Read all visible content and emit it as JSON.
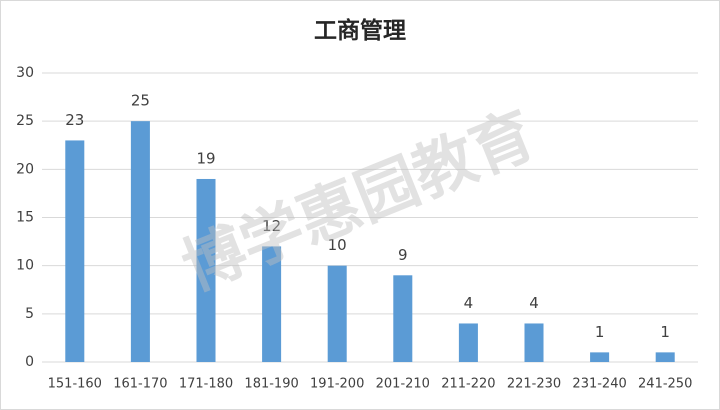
{
  "chart_data": {
    "type": "bar",
    "title": "工商管理",
    "categories": [
      "151-160",
      "161-170",
      "171-180",
      "181-190",
      "191-200",
      "201-210",
      "211-220",
      "221-230",
      "231-240",
      "241-250"
    ],
    "values": [
      23,
      25,
      19,
      12,
      10,
      9,
      4,
      4,
      1,
      1
    ],
    "color": "#5b9bd5",
    "ylim": [
      0,
      30
    ],
    "yticks": [
      0,
      5,
      10,
      15,
      20,
      25,
      30
    ],
    "grid": true,
    "watermark": "博学惠园教育"
  }
}
